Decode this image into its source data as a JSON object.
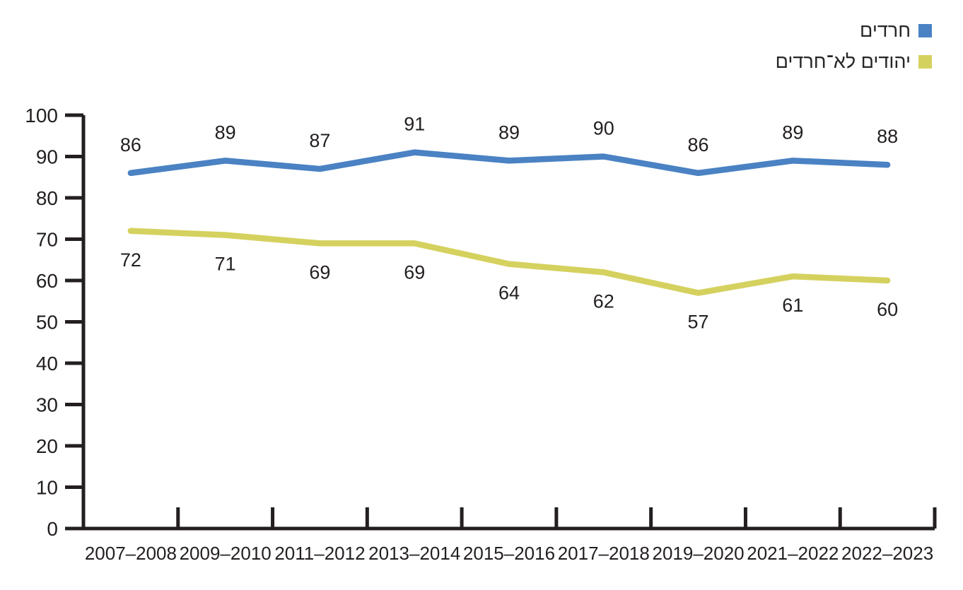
{
  "page": {
    "background": "#ffffff"
  },
  "legend": {
    "position": "top-right",
    "items": [
      {
        "id": "haredim",
        "label": "חרדים",
        "color": "#4a82c3"
      },
      {
        "id": "non-haredi-jews",
        "label": "יהודים לא־חרדים",
        "color": "#d5d15f"
      }
    ]
  },
  "chart_data": {
    "type": "line",
    "title": "",
    "xlabel": "",
    "ylabel": "",
    "categories": [
      "2007–2008",
      "2009–2010",
      "2011–2012",
      "2013–2014",
      "2015–2016",
      "2017–2018",
      "2019–2020",
      "2021–2022",
      "2022–2023"
    ],
    "series": [
      {
        "name": "חרדים",
        "values": [
          86,
          89,
          87,
          91,
          89,
          90,
          86,
          89,
          88
        ],
        "color": "#4a82c3",
        "label_color": "#6e96cf",
        "label_position": "above"
      },
      {
        "name": "יהודים לא־חרדים",
        "values": [
          72,
          71,
          69,
          69,
          64,
          62,
          57,
          61,
          60
        ],
        "color": "#d5d15f",
        "label_color": "#c8c45c",
        "label_position": "below"
      }
    ],
    "ylim": [
      0,
      100
    ],
    "yticks": [
      0,
      10,
      20,
      30,
      40,
      50,
      60,
      70,
      80,
      90,
      100
    ],
    "grid": false,
    "show_point_labels": true,
    "axis_color": "#231f20",
    "legend_position": "top-right"
  }
}
